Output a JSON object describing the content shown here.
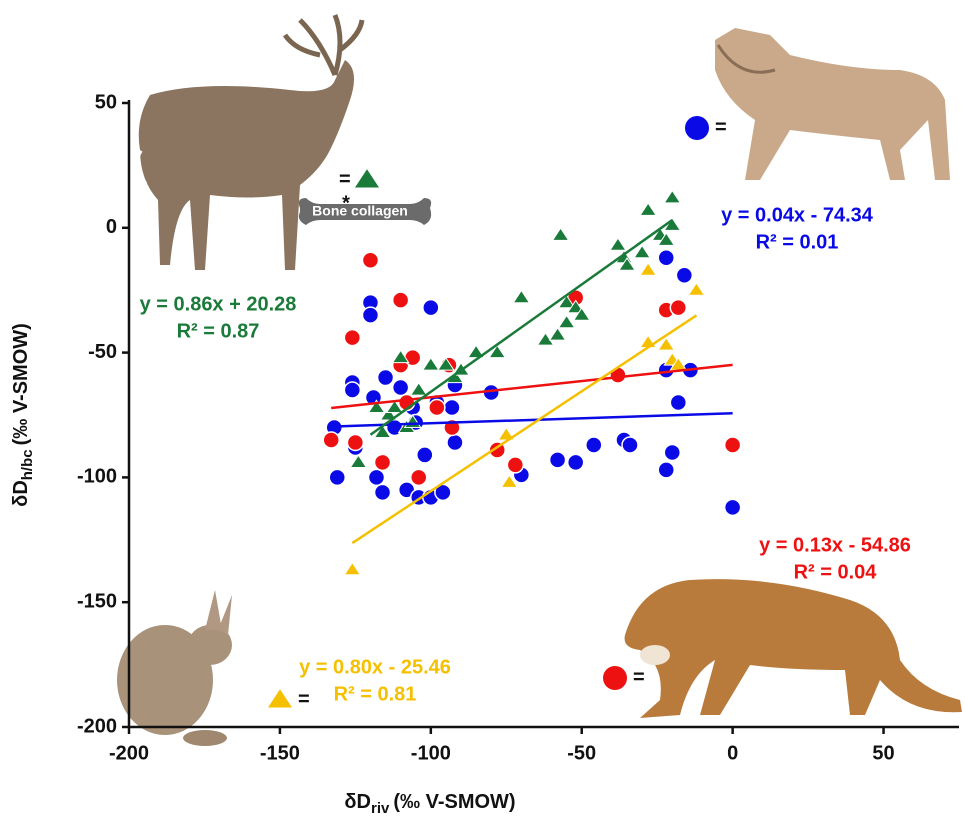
{
  "chart_data": {
    "type": "scatter",
    "x_label": {
      "symbol": "δD",
      "subscript": "riv",
      "unit": "(‰ V-SMOW)"
    },
    "y_label": {
      "symbol": "δD",
      "subscript": "h/bc",
      "unit": "(‰ V-SMOW)"
    },
    "xlim": [
      -200,
      75
    ],
    "xticks": [
      -200,
      -150,
      -100,
      -50,
      0,
      50
    ],
    "ylim": [
      -200,
      50
    ],
    "yticks": [
      -200,
      -150,
      -100,
      -50,
      0,
      50
    ],
    "bone_note": {
      "asterisk": "*",
      "text": "Bone collagen"
    },
    "series": [
      {
        "marker": "circle",
        "color": "#0a0ae6",
        "x": [
          -132,
          -131,
          -126,
          -126,
          -125,
          -120,
          -120,
          -119,
          -118,
          -116,
          -116,
          -115,
          -112,
          -110,
          -108,
          -106,
          -105,
          -104,
          -102,
          -100,
          -100,
          -98,
          -96,
          -93,
          -92,
          -92,
          -80,
          -70,
          -58,
          -52,
          -46,
          -36,
          -34,
          -22,
          -22,
          -22,
          -20,
          -18,
          -16,
          -14,
          0
        ],
        "values": [
          -80,
          -100,
          -62,
          -65,
          -88,
          -30,
          -35,
          -68,
          -100,
          -94,
          -106,
          -60,
          -80,
          -64,
          -105,
          -72,
          -78,
          -108,
          -91,
          -108,
          -32,
          -70,
          -106,
          -72,
          -63,
          -86,
          -66,
          -99,
          -93,
          -94,
          -87,
          -85,
          -87,
          -12,
          -57,
          -97,
          -90,
          -70,
          -19,
          -57,
          -112
        ],
        "trendline": {
          "x": [
            -132,
            0
          ],
          "values": [
            -79.6,
            -74.3
          ]
        },
        "equation": "y = 0.04x - 74.34",
        "r_squared": "R² = 0.01"
      },
      {
        "marker": "circle",
        "color": "#ee1111",
        "x": [
          -133,
          -126,
          -125,
          -120,
          -116,
          -110,
          -110,
          -108,
          -106,
          -104,
          -98,
          -94,
          -93,
          -78,
          -72,
          -52,
          -38,
          -22,
          -18,
          0
        ],
        "values": [
          -85,
          -44,
          -86,
          -13,
          -94,
          -29,
          -55,
          -70,
          -52,
          -100,
          -72,
          -55,
          -80,
          -89,
          -95,
          -28,
          -59,
          -33,
          -32,
          -87
        ],
        "trendline": {
          "x": [
            -133,
            0
          ],
          "values": [
            -72.2,
            -54.9
          ]
        },
        "equation": "y = 0.13x - 54.86",
        "r_squared": "R² = 0.04"
      },
      {
        "marker": "triangle",
        "color": "#1a7a3a",
        "x": [
          -124,
          -118,
          -116,
          -114,
          -112,
          -110,
          -108,
          -106,
          -104,
          -100,
          -95,
          -92,
          -90,
          -85,
          -78,
          -70,
          -62,
          -58,
          -55,
          -55,
          -52,
          -50,
          -57,
          -38,
          -36,
          -35,
          -30,
          -28,
          -24,
          -22,
          -20,
          -20
        ],
        "values": [
          -94,
          -72,
          -82,
          -75,
          -72,
          -52,
          -80,
          -78,
          -65,
          -55,
          -55,
          -60,
          -57,
          -50,
          -50,
          -28,
          -45,
          -43,
          -38,
          -30,
          -32,
          -35,
          -3,
          -7,
          -12,
          -15,
          -10,
          7,
          -3,
          -5,
          1,
          12
        ],
        "trendline": {
          "x": [
            -120,
            -20
          ],
          "values": [
            -82.9,
            3.1
          ]
        },
        "equation": "y = 0.86x + 20.28",
        "r_squared": "R² = 0.87"
      },
      {
        "marker": "triangle",
        "color": "#f5c000",
        "x": [
          -126,
          -75,
          -74,
          -28,
          -28,
          -22,
          -20,
          -18,
          -12
        ],
        "values": [
          -137,
          -83,
          -102,
          -46,
          -17,
          -47,
          -53,
          -55,
          -25
        ],
        "trendline": {
          "x": [
            -126,
            -12
          ],
          "values": [
            -126.3,
            -35.1
          ]
        },
        "equation": "y = 0.80x - 25.46",
        "r_squared": "R² = 0.81"
      }
    ]
  }
}
